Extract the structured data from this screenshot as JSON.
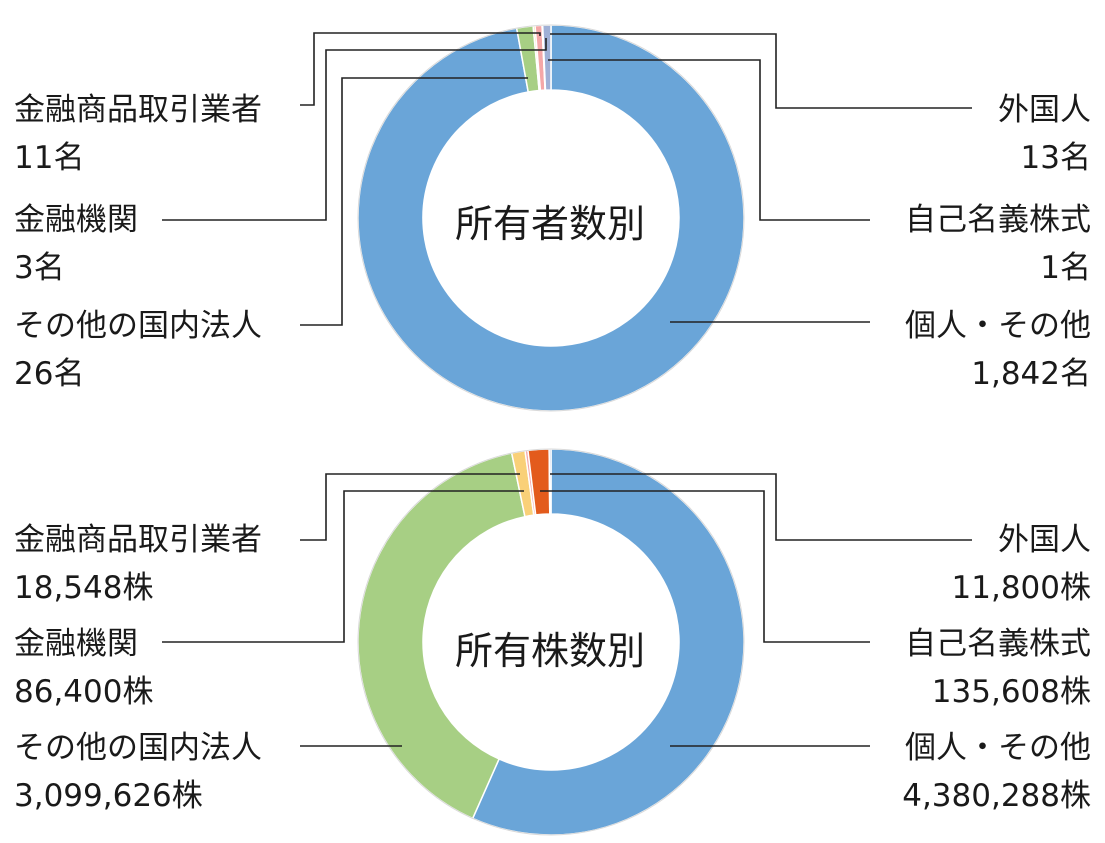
{
  "colors": {
    "個人・その他": "#6aa5d8",
    "その他の国内法人": "#a7cf84",
    "金融機関": "#f9d078",
    "金融商品取引業者": "#f4a7a7",
    "自己名義株式": "#c9a0d9",
    "外国人": "#e35b1c",
    "leader": "#222222"
  },
  "chart_data": [
    {
      "type": "pie",
      "subtype": "donut",
      "title": "所有者数別",
      "slices": [
        {
          "name": "個人・その他",
          "value": 1842,
          "display": "1,842名",
          "color": "#6aa5d8"
        },
        {
          "name": "その他の国内法人",
          "value": 26,
          "display": "26名",
          "color": "#a7cf84"
        },
        {
          "name": "金融機関",
          "value": 3,
          "display": "3名",
          "color": "#f9d078"
        },
        {
          "name": "金融商品取引業者",
          "value": 11,
          "display": "11名",
          "color": "#f4a7a7"
        },
        {
          "name": "自己名義株式",
          "value": 1,
          "display": "1名",
          "color": "#c9a0d9"
        },
        {
          "name": "外国人",
          "value": 13,
          "display": "13名",
          "color": "#9fb0d6"
        }
      ]
    },
    {
      "type": "pie",
      "subtype": "donut",
      "title": "所有株数別",
      "slices": [
        {
          "name": "個人・その他",
          "value": 4380288,
          "display": "4,380,288株",
          "color": "#6aa5d8"
        },
        {
          "name": "その他の国内法人",
          "value": 3099626,
          "display": "3,099,626株",
          "color": "#a7cf84"
        },
        {
          "name": "金融機関",
          "value": 86400,
          "display": "86,400株",
          "color": "#f9d078"
        },
        {
          "name": "金融商品取引業者",
          "value": 18548,
          "display": "18,548株",
          "color": "#f4a7a7"
        },
        {
          "name": "自己名義株式",
          "value": 135608,
          "display": "135,608株",
          "color": "#e35b1c"
        },
        {
          "name": "外国人",
          "value": 11800,
          "display": "11,800株",
          "color": "#9fb0d6"
        }
      ]
    }
  ],
  "labels": {
    "top": {
      "financial_instruments": {
        "name": "金融商品取引業者",
        "value": "11名"
      },
      "financial_institutions": {
        "name": "金融機関",
        "value": "3名"
      },
      "other_domestic": {
        "name": "その他の国内法人",
        "value": "26名"
      },
      "foreign": {
        "name": "外国人",
        "value": "13名"
      },
      "treasury": {
        "name": "自己名義株式",
        "value": "1名"
      },
      "individual": {
        "name": "個人・その他",
        "value": "1,842名"
      }
    },
    "bottom": {
      "financial_instruments": {
        "name": "金融商品取引業者",
        "value": "18,548株"
      },
      "financial_institutions": {
        "name": "金融機関",
        "value": "86,400株"
      },
      "other_domestic": {
        "name": "その他の国内法人",
        "value": "3,099,626株"
      },
      "foreign": {
        "name": "外国人",
        "value": "11,800株"
      },
      "treasury": {
        "name": "自己名義株式",
        "value": "135,608株"
      },
      "individual": {
        "name": "個人・その他",
        "value": "4,380,288株"
      }
    }
  }
}
